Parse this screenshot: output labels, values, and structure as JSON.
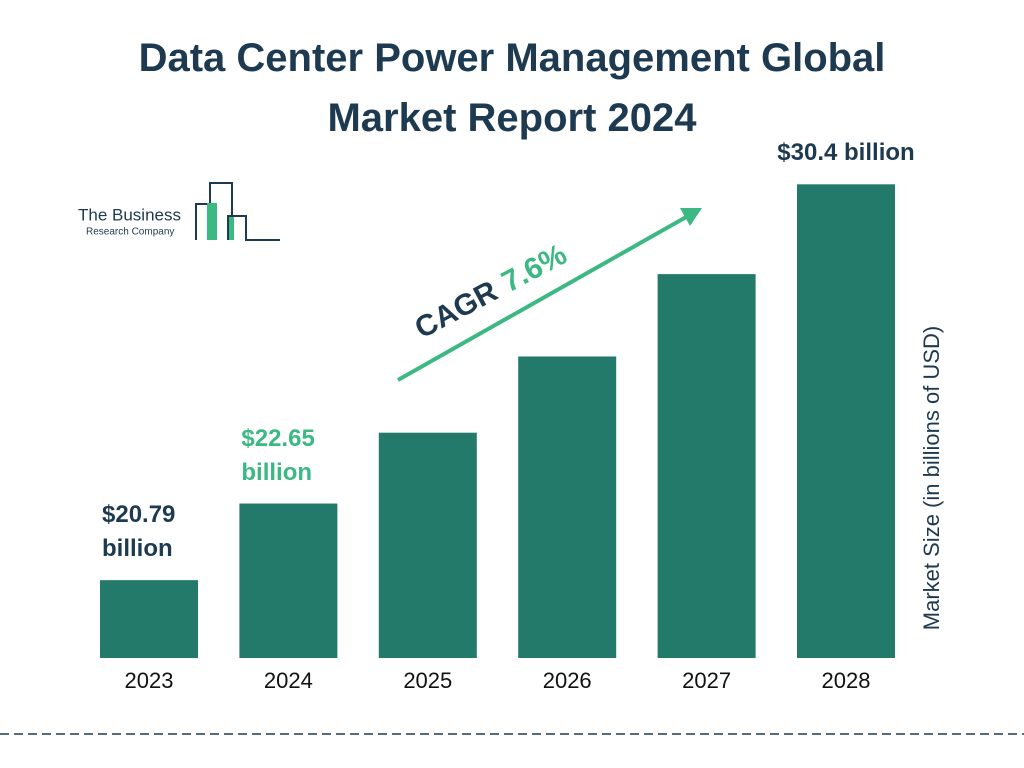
{
  "chart_data": {
    "type": "bar",
    "title": "Data Center Power Management Global Market Report 2024",
    "categories": [
      "2023",
      "2024",
      "2025",
      "2026",
      "2027",
      "2028"
    ],
    "values": [
      20.79,
      22.65,
      24.37,
      26.22,
      28.22,
      30.4
    ],
    "value_labels": [
      "$20.79 billion",
      "$22.65 billion",
      null,
      null,
      null,
      "$30.4 billion"
    ],
    "color": "#237a6b",
    "ylim": [
      18.9,
      31.5
    ],
    "y_axis_label": "Market Size (in billions of USD)",
    "cagr_label": "CAGR",
    "cagr": "7.6%"
  },
  "logo": {
    "lines": [
      "The Business",
      "Research Company"
    ]
  }
}
